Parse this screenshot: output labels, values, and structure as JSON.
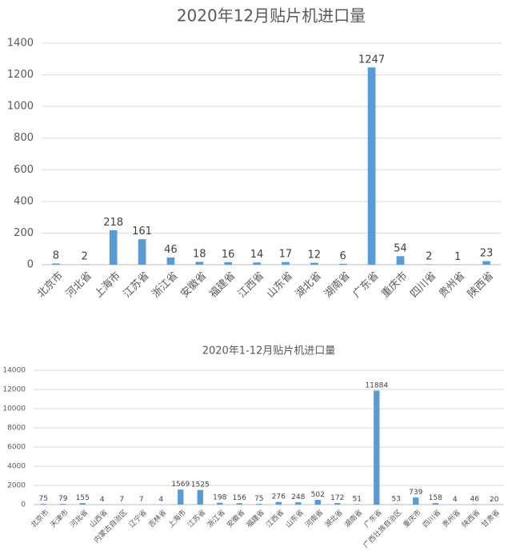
{
  "chart_data": [
    {
      "type": "bar",
      "title": "2020年12月贴片机进口量",
      "xlabel": "",
      "ylabel": "",
      "ylim": [
        0,
        1400
      ],
      "yticks": [
        0,
        200,
        400,
        600,
        800,
        1000,
        1200,
        1400
      ],
      "grid": true,
      "legend": "none",
      "bar_color": "#5b9bd5",
      "categories": [
        "北京市",
        "河北省",
        "上海市",
        "江苏省",
        "浙江省",
        "安徽省",
        "福建省",
        "江西省",
        "山东省",
        "湖北省",
        "湖南省",
        "广东省",
        "重庆市",
        "四川省",
        "贵州省",
        "陕西省"
      ],
      "values": [
        8,
        2,
        218,
        161,
        46,
        18,
        16,
        14,
        17,
        12,
        6,
        1247,
        54,
        2,
        1,
        23
      ]
    },
    {
      "type": "bar",
      "title": "2020年1-12月贴片机进口量",
      "xlabel": "",
      "ylabel": "",
      "ylim": [
        0,
        14000
      ],
      "yticks": [
        0,
        2000,
        4000,
        6000,
        8000,
        10000,
        12000,
        14000
      ],
      "grid": true,
      "legend": "none",
      "bar_color": "#5b9bd5",
      "categories": [
        "北京市",
        "天津市",
        "河北省",
        "山西省",
        "内蒙古自治区",
        "辽宁省",
        "吉林省",
        "上海市",
        "江苏省",
        "浙江省",
        "安徽省",
        "福建省",
        "江西省",
        "山东省",
        "河南省",
        "湖北省",
        "湖南省",
        "广东省",
        "广西壮族自治区",
        "重庆市",
        "四川省",
        "贵州省",
        "陕西省",
        "甘肃省"
      ],
      "values": [
        75,
        79,
        155,
        4,
        7,
        7,
        4,
        1569,
        1525,
        198,
        156,
        75,
        276,
        248,
        502,
        172,
        51,
        11884,
        53,
        739,
        158,
        4,
        46,
        20
      ]
    }
  ]
}
